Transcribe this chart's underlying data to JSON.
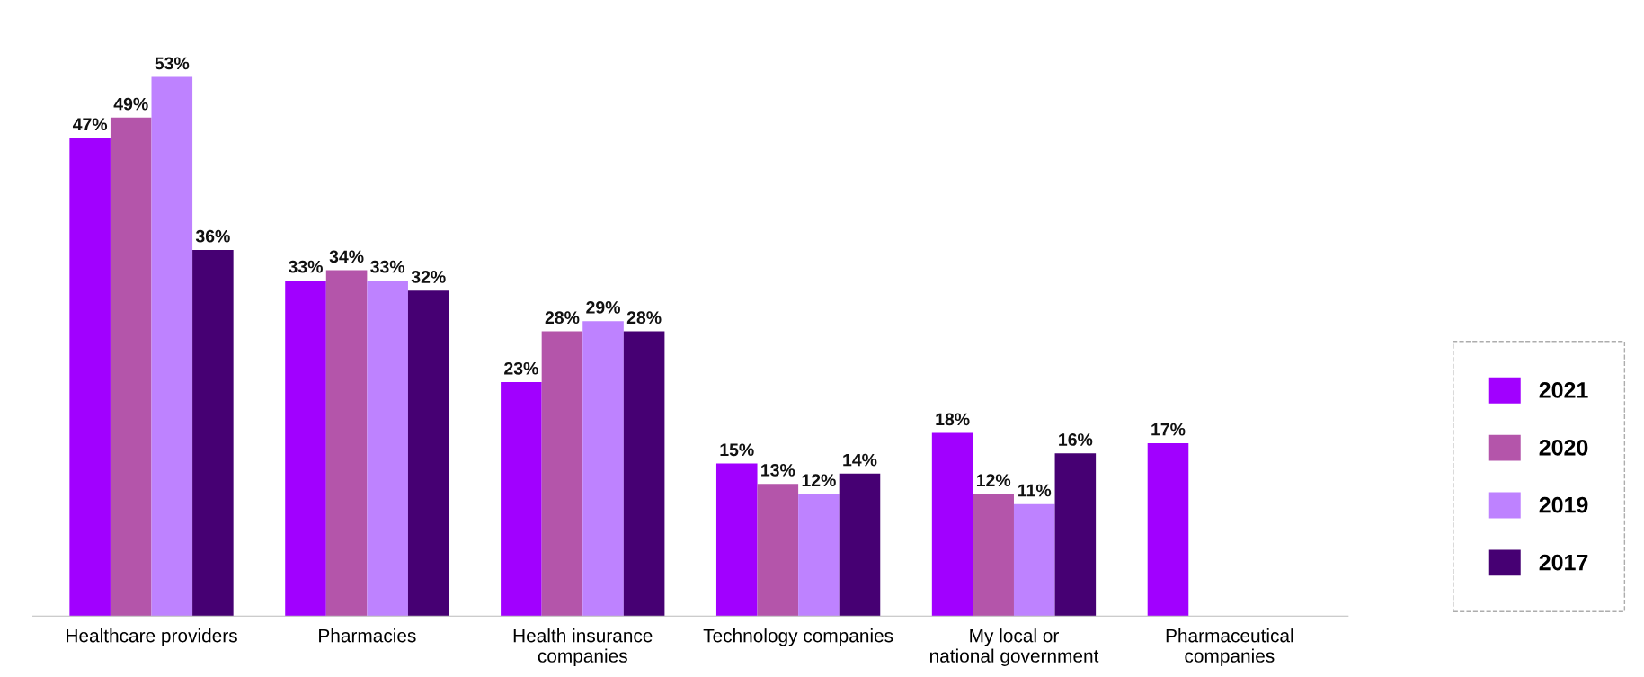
{
  "chart_data": {
    "type": "bar",
    "categories": [
      "Healthcare providers",
      "Pharmacies",
      "Health insurance companies",
      "Technology companies",
      "My local or national government",
      "Pharmaceutical companies"
    ],
    "series": [
      {
        "name": "2021",
        "color": "#a100ff",
        "values": [
          47,
          33,
          23,
          15,
          18,
          17
        ],
        "value_labels": [
          "47%",
          "33%",
          "23%",
          "15%",
          "18%",
          "17%"
        ]
      },
      {
        "name": "2020",
        "color": "#b455aa",
        "values": [
          49,
          34,
          28,
          13,
          12,
          null
        ],
        "value_labels": [
          "49%",
          "34%",
          "28%",
          "13%",
          "12%",
          null
        ]
      },
      {
        "name": "2019",
        "color": "#be82ff",
        "values": [
          53,
          33,
          29,
          12,
          11,
          null
        ],
        "value_labels": [
          "53%",
          "33%",
          "29%",
          "12%",
          "11%",
          null
        ]
      },
      {
        "name": "2017",
        "color": "#460073",
        "values": [
          36,
          32,
          28,
          14,
          16,
          null
        ],
        "value_labels": [
          "36%",
          "32%",
          "28%",
          "14%",
          "16%",
          null
        ]
      }
    ],
    "legend": "bottom right"
  }
}
